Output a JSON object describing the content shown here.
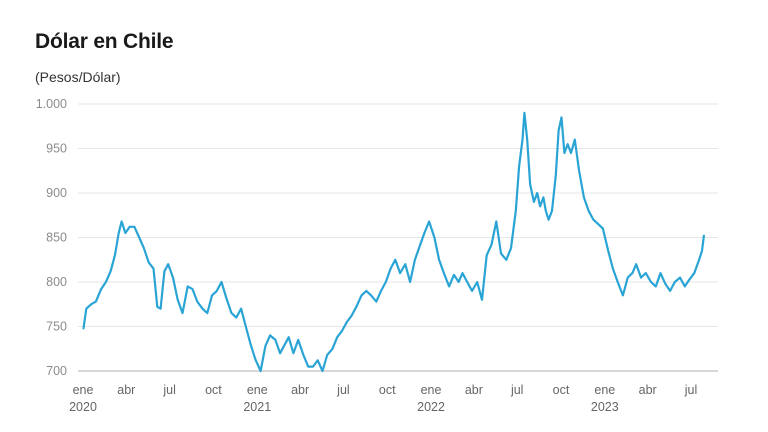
{
  "chart_data": {
    "type": "line",
    "title": "Dólar en Chile",
    "subtitle": "(Pesos/Dólar)",
    "ylim": [
      700,
      1000
    ],
    "y_ticks": [
      "700",
      "750",
      "800",
      "850",
      "900",
      "950",
      "1.000"
    ],
    "y_tick_values": [
      700,
      750,
      800,
      850,
      900,
      950,
      1000
    ],
    "grid": true,
    "x_ticks": [
      {
        "month": "ene",
        "year": "2020",
        "date": "2020-01-01"
      },
      {
        "month": "abr",
        "year": "",
        "date": "2020-04-01"
      },
      {
        "month": "jul",
        "year": "",
        "date": "2020-07-01"
      },
      {
        "month": "oct",
        "year": "",
        "date": "2020-10-01"
      },
      {
        "month": "ene",
        "year": "2021",
        "date": "2021-01-01"
      },
      {
        "month": "abr",
        "year": "",
        "date": "2021-04-01"
      },
      {
        "month": "jul",
        "year": "",
        "date": "2021-07-01"
      },
      {
        "month": "oct",
        "year": "",
        "date": "2021-10-01"
      },
      {
        "month": "ene",
        "year": "2022",
        "date": "2022-01-01"
      },
      {
        "month": "abr",
        "year": "",
        "date": "2022-04-01"
      },
      {
        "month": "jul",
        "year": "",
        "date": "2022-07-01"
      },
      {
        "month": "oct",
        "year": "",
        "date": "2022-10-01"
      },
      {
        "month": "ene",
        "year": "2023",
        "date": "2023-01-01"
      },
      {
        "month": "abr",
        "year": "",
        "date": "2023-04-01"
      },
      {
        "month": "jul",
        "year": "",
        "date": "2023-07-01"
      }
    ],
    "series": [
      {
        "color": "#2aa4d5",
        "points": [
          [
            "2020-01-02",
            748
          ],
          [
            "2020-01-08",
            770
          ],
          [
            "2020-01-18",
            775
          ],
          [
            "2020-01-28",
            778
          ],
          [
            "2020-02-08",
            792
          ],
          [
            "2020-02-18",
            800
          ],
          [
            "2020-02-28",
            812
          ],
          [
            "2020-03-08",
            830
          ],
          [
            "2020-03-16",
            855
          ],
          [
            "2020-03-22",
            868
          ],
          [
            "2020-03-30",
            855
          ],
          [
            "2020-04-08",
            862
          ],
          [
            "2020-04-18",
            862
          ],
          [
            "2020-04-28",
            850
          ],
          [
            "2020-05-08",
            838
          ],
          [
            "2020-05-18",
            822
          ],
          [
            "2020-05-28",
            815
          ],
          [
            "2020-06-05",
            772
          ],
          [
            "2020-06-12",
            770
          ],
          [
            "2020-06-20",
            812
          ],
          [
            "2020-06-28",
            820
          ],
          [
            "2020-07-08",
            805
          ],
          [
            "2020-07-18",
            780
          ],
          [
            "2020-07-28",
            765
          ],
          [
            "2020-08-08",
            795
          ],
          [
            "2020-08-18",
            792
          ],
          [
            "2020-08-28",
            778
          ],
          [
            "2020-09-08",
            770
          ],
          [
            "2020-09-18",
            765
          ],
          [
            "2020-09-28",
            785
          ],
          [
            "2020-10-08",
            790
          ],
          [
            "2020-10-18",
            800
          ],
          [
            "2020-10-28",
            782
          ],
          [
            "2020-11-08",
            765
          ],
          [
            "2020-11-18",
            760
          ],
          [
            "2020-11-28",
            770
          ],
          [
            "2020-12-08",
            750
          ],
          [
            "2020-12-18",
            730
          ],
          [
            "2020-12-28",
            713
          ],
          [
            "2021-01-08",
            700
          ],
          [
            "2021-01-18",
            728
          ],
          [
            "2021-01-28",
            740
          ],
          [
            "2021-02-08",
            735
          ],
          [
            "2021-02-18",
            720
          ],
          [
            "2021-02-28",
            730
          ],
          [
            "2021-03-08",
            738
          ],
          [
            "2021-03-18",
            720
          ],
          [
            "2021-03-28",
            735
          ],
          [
            "2021-04-08",
            718
          ],
          [
            "2021-04-18",
            705
          ],
          [
            "2021-04-28",
            705
          ],
          [
            "2021-05-08",
            712
          ],
          [
            "2021-05-18",
            700
          ],
          [
            "2021-05-28",
            718
          ],
          [
            "2021-06-08",
            725
          ],
          [
            "2021-06-18",
            738
          ],
          [
            "2021-06-28",
            745
          ],
          [
            "2021-07-08",
            755
          ],
          [
            "2021-07-18",
            762
          ],
          [
            "2021-07-28",
            772
          ],
          [
            "2021-08-08",
            785
          ],
          [
            "2021-08-18",
            790
          ],
          [
            "2021-08-28",
            785
          ],
          [
            "2021-09-08",
            778
          ],
          [
            "2021-09-18",
            790
          ],
          [
            "2021-09-28",
            800
          ],
          [
            "2021-10-08",
            815
          ],
          [
            "2021-10-18",
            825
          ],
          [
            "2021-10-28",
            810
          ],
          [
            "2021-11-08",
            820
          ],
          [
            "2021-11-18",
            800
          ],
          [
            "2021-11-28",
            825
          ],
          [
            "2021-12-08",
            840
          ],
          [
            "2021-12-18",
            855
          ],
          [
            "2021-12-28",
            868
          ],
          [
            "2022-01-08",
            850
          ],
          [
            "2022-01-18",
            825
          ],
          [
            "2022-01-28",
            810
          ],
          [
            "2022-02-08",
            795
          ],
          [
            "2022-02-18",
            808
          ],
          [
            "2022-02-28",
            800
          ],
          [
            "2022-03-08",
            810
          ],
          [
            "2022-03-18",
            800
          ],
          [
            "2022-03-28",
            790
          ],
          [
            "2022-04-08",
            800
          ],
          [
            "2022-04-18",
            780
          ],
          [
            "2022-04-28",
            830
          ],
          [
            "2022-05-08",
            842
          ],
          [
            "2022-05-18",
            868
          ],
          [
            "2022-05-28",
            832
          ],
          [
            "2022-06-08",
            825
          ],
          [
            "2022-06-18",
            838
          ],
          [
            "2022-06-28",
            880
          ],
          [
            "2022-07-05",
            930
          ],
          [
            "2022-07-12",
            960
          ],
          [
            "2022-07-16",
            990
          ],
          [
            "2022-07-22",
            960
          ],
          [
            "2022-07-28",
            910
          ],
          [
            "2022-08-05",
            890
          ],
          [
            "2022-08-12",
            900
          ],
          [
            "2022-08-18",
            885
          ],
          [
            "2022-08-25",
            895
          ],
          [
            "2022-08-30",
            880
          ],
          [
            "2022-09-05",
            870
          ],
          [
            "2022-09-12",
            880
          ],
          [
            "2022-09-20",
            920
          ],
          [
            "2022-09-26",
            970
          ],
          [
            "2022-10-02",
            985
          ],
          [
            "2022-10-08",
            945
          ],
          [
            "2022-10-15",
            955
          ],
          [
            "2022-10-22",
            945
          ],
          [
            "2022-10-30",
            960
          ],
          [
            "2022-11-08",
            925
          ],
          [
            "2022-11-18",
            895
          ],
          [
            "2022-11-28",
            880
          ],
          [
            "2022-12-08",
            870
          ],
          [
            "2022-12-18",
            865
          ],
          [
            "2022-12-28",
            860
          ],
          [
            "2023-01-08",
            835
          ],
          [
            "2023-01-18",
            815
          ],
          [
            "2023-01-28",
            800
          ],
          [
            "2023-02-08",
            785
          ],
          [
            "2023-02-18",
            805
          ],
          [
            "2023-02-28",
            810
          ],
          [
            "2023-03-08",
            820
          ],
          [
            "2023-03-18",
            805
          ],
          [
            "2023-03-28",
            810
          ],
          [
            "2023-04-08",
            800
          ],
          [
            "2023-04-18",
            795
          ],
          [
            "2023-04-28",
            810
          ],
          [
            "2023-05-08",
            798
          ],
          [
            "2023-05-18",
            790
          ],
          [
            "2023-05-28",
            800
          ],
          [
            "2023-06-08",
            805
          ],
          [
            "2023-06-18",
            795
          ],
          [
            "2023-06-28",
            803
          ],
          [
            "2023-07-08",
            810
          ],
          [
            "2023-07-18",
            825
          ],
          [
            "2023-07-24",
            835
          ],
          [
            "2023-07-28",
            852
          ]
        ]
      }
    ]
  }
}
